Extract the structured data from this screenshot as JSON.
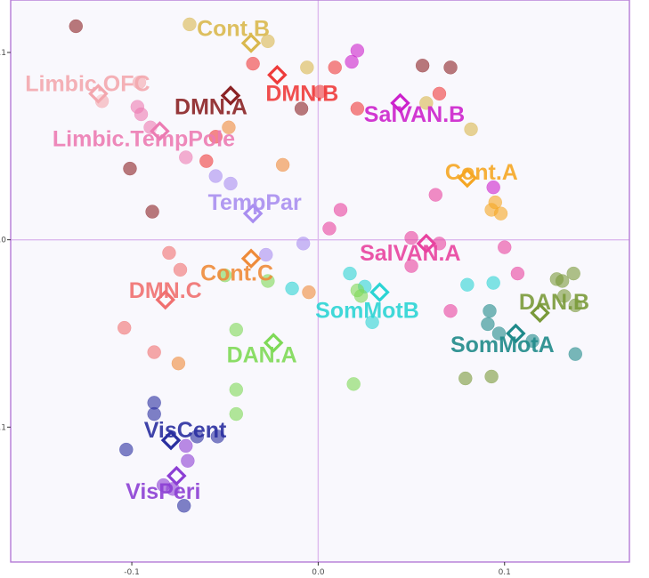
{
  "chart_data": {
    "type": "scatter",
    "title": "",
    "xlabel": "",
    "ylabel": "",
    "xlim": [
      -0.165,
      0.167
    ],
    "ylim": [
      -0.172,
      0.128
    ],
    "x_ticks": [
      -0.1,
      0.0,
      0.1
    ],
    "x_tick_labels": [
      "-0.1",
      "0.0",
      "0.1"
    ],
    "y_ticks": [
      0.1,
      0.0,
      -0.1
    ],
    "y_tick_labels": [
      "0.1",
      "0.0",
      "-0.1"
    ],
    "grid": false,
    "zero_lines": true,
    "legend": "none",
    "background": "#f9f8fd",
    "border_color": "#b57ad6",
    "zero_line_color": "#ddb9ee",
    "series": [
      {
        "name": "Limbic.OFC",
        "color": "#f3a7ae",
        "centroid": [
          -0.118,
          0.078
        ],
        "points": [
          [
            -0.116,
            0.074
          ],
          [
            -0.096,
            0.084
          ]
        ]
      },
      {
        "name": "Limbic.TempPole",
        "color": "#ec7bb2",
        "centroid": [
          -0.085,
          0.058
        ],
        "points": [
          [
            -0.095,
            0.067
          ],
          [
            -0.09,
            0.06
          ],
          [
            -0.071,
            0.044
          ],
          [
            -0.097,
            0.071
          ]
        ]
      },
      {
        "name": "DMN.A",
        "color": "#8b2225",
        "centroid": [
          -0.047,
          0.077
        ],
        "points": [
          [
            -0.13,
            0.114
          ],
          [
            -0.101,
            0.038
          ],
          [
            -0.089,
            0.015
          ],
          [
            -0.009,
            0.07
          ],
          [
            0.056,
            0.093
          ],
          [
            0.071,
            0.092
          ]
        ]
      },
      {
        "name": "DMN.B",
        "color": "#ee3b3b",
        "centroid": [
          -0.022,
          0.088
        ],
        "points": [
          [
            -0.035,
            0.094
          ],
          [
            0.009,
            0.092
          ],
          [
            -0.055,
            0.055
          ],
          [
            -0.06,
            0.042
          ],
          [
            0.021,
            0.07
          ],
          [
            0.065,
            0.078
          ],
          [
            0.001,
            0.079
          ]
        ]
      },
      {
        "name": "Cont.B",
        "color": "#d9b84e",
        "centroid": [
          -0.036,
          0.105
        ],
        "points": [
          [
            -0.069,
            0.115
          ],
          [
            -0.027,
            0.106
          ],
          [
            -0.006,
            0.092
          ],
          [
            0.058,
            0.073
          ],
          [
            0.082,
            0.059
          ]
        ]
      },
      {
        "name": "Cont.A",
        "color": "#f5a623",
        "centroid": [
          0.08,
          0.033
        ],
        "points": [
          [
            0.095,
            0.02
          ],
          [
            0.098,
            0.014
          ],
          [
            0.093,
            0.016
          ]
        ]
      },
      {
        "name": "Cont.C",
        "color": "#ee8b3a",
        "centroid": [
          -0.036,
          -0.01
        ],
        "points": [
          [
            -0.048,
            0.06
          ],
          [
            -0.019,
            0.04
          ],
          [
            -0.005,
            -0.028
          ],
          [
            -0.075,
            -0.066
          ]
        ]
      },
      {
        "name": "SalVAN.B",
        "color": "#cc22cc",
        "centroid": [
          0.044,
          0.073
        ],
        "points": [
          [
            0.021,
            0.101
          ],
          [
            0.018,
            0.095
          ],
          [
            0.094,
            0.028
          ]
        ]
      },
      {
        "name": "SalVAN.A",
        "color": "#e8429f",
        "centroid": [
          0.058,
          -0.002
        ],
        "points": [
          [
            0.05,
            0.001
          ],
          [
            0.05,
            -0.014
          ],
          [
            0.063,
            0.024
          ],
          [
            0.065,
            -0.002
          ],
          [
            0.012,
            0.016
          ],
          [
            0.006,
            0.006
          ],
          [
            0.1,
            -0.004
          ],
          [
            0.107,
            -0.018
          ],
          [
            0.071,
            -0.038
          ]
        ]
      },
      {
        "name": "TempPar",
        "color": "#a98ef0",
        "centroid": [
          -0.035,
          0.014
        ],
        "points": [
          [
            -0.055,
            0.034
          ],
          [
            -0.047,
            0.03
          ],
          [
            -0.028,
            -0.008
          ],
          [
            -0.008,
            -0.002
          ]
        ]
      },
      {
        "name": "DMN.C",
        "color": "#f07070",
        "centroid": [
          -0.082,
          -0.032
        ],
        "points": [
          [
            -0.074,
            -0.016
          ],
          [
            -0.104,
            -0.047
          ],
          [
            -0.088,
            -0.06
          ],
          [
            -0.08,
            -0.007
          ]
        ]
      },
      {
        "name": "SomMotB",
        "color": "#2bd4d4",
        "centroid": [
          0.033,
          -0.028
        ],
        "points": [
          [
            -0.014,
            -0.026
          ],
          [
            0.017,
            -0.018
          ],
          [
            0.025,
            -0.025
          ],
          [
            0.029,
            -0.044
          ],
          [
            0.08,
            -0.024
          ],
          [
            0.094,
            -0.023
          ]
        ]
      },
      {
        "name": "DAN.A",
        "color": "#7ed957",
        "centroid": [
          -0.024,
          -0.055
        ],
        "points": [
          [
            -0.05,
            -0.019
          ],
          [
            -0.044,
            -0.048
          ],
          [
            -0.044,
            -0.08
          ],
          [
            -0.044,
            -0.093
          ],
          [
            -0.027,
            -0.022
          ],
          [
            0.019,
            -0.077
          ],
          [
            0.021,
            -0.027
          ],
          [
            0.023,
            -0.03
          ]
        ]
      },
      {
        "name": "DAN.B",
        "color": "#7a9a3a",
        "centroid": [
          0.119,
          -0.039
        ],
        "points": [
          [
            0.128,
            -0.021
          ],
          [
            0.131,
            -0.022
          ],
          [
            0.137,
            -0.018
          ],
          [
            0.132,
            -0.03
          ],
          [
            0.138,
            -0.035
          ],
          [
            0.079,
            -0.074
          ],
          [
            0.093,
            -0.073
          ]
        ]
      },
      {
        "name": "SomMotA",
        "color": "#1f8a8a",
        "centroid": [
          0.106,
          -0.05
        ],
        "points": [
          [
            0.092,
            -0.038
          ],
          [
            0.091,
            -0.045
          ],
          [
            0.097,
            -0.05
          ],
          [
            0.115,
            -0.054
          ],
          [
            0.138,
            -0.061
          ]
        ]
      },
      {
        "name": "VisCent",
        "color": "#2a2fa0",
        "centroid": [
          -0.079,
          -0.107
        ],
        "points": [
          [
            -0.088,
            -0.087
          ],
          [
            -0.088,
            -0.093
          ],
          [
            -0.103,
            -0.112
          ],
          [
            -0.065,
            -0.105
          ],
          [
            -0.054,
            -0.105
          ],
          [
            -0.072,
            -0.142
          ]
        ]
      },
      {
        "name": "VisPeri",
        "color": "#8c3fd4",
        "centroid": [
          -0.076,
          -0.126
        ],
        "points": [
          [
            -0.071,
            -0.11
          ],
          [
            -0.07,
            -0.118
          ],
          [
            -0.083,
            -0.131
          ],
          [
            -0.078,
            -0.133
          ]
        ]
      }
    ]
  }
}
